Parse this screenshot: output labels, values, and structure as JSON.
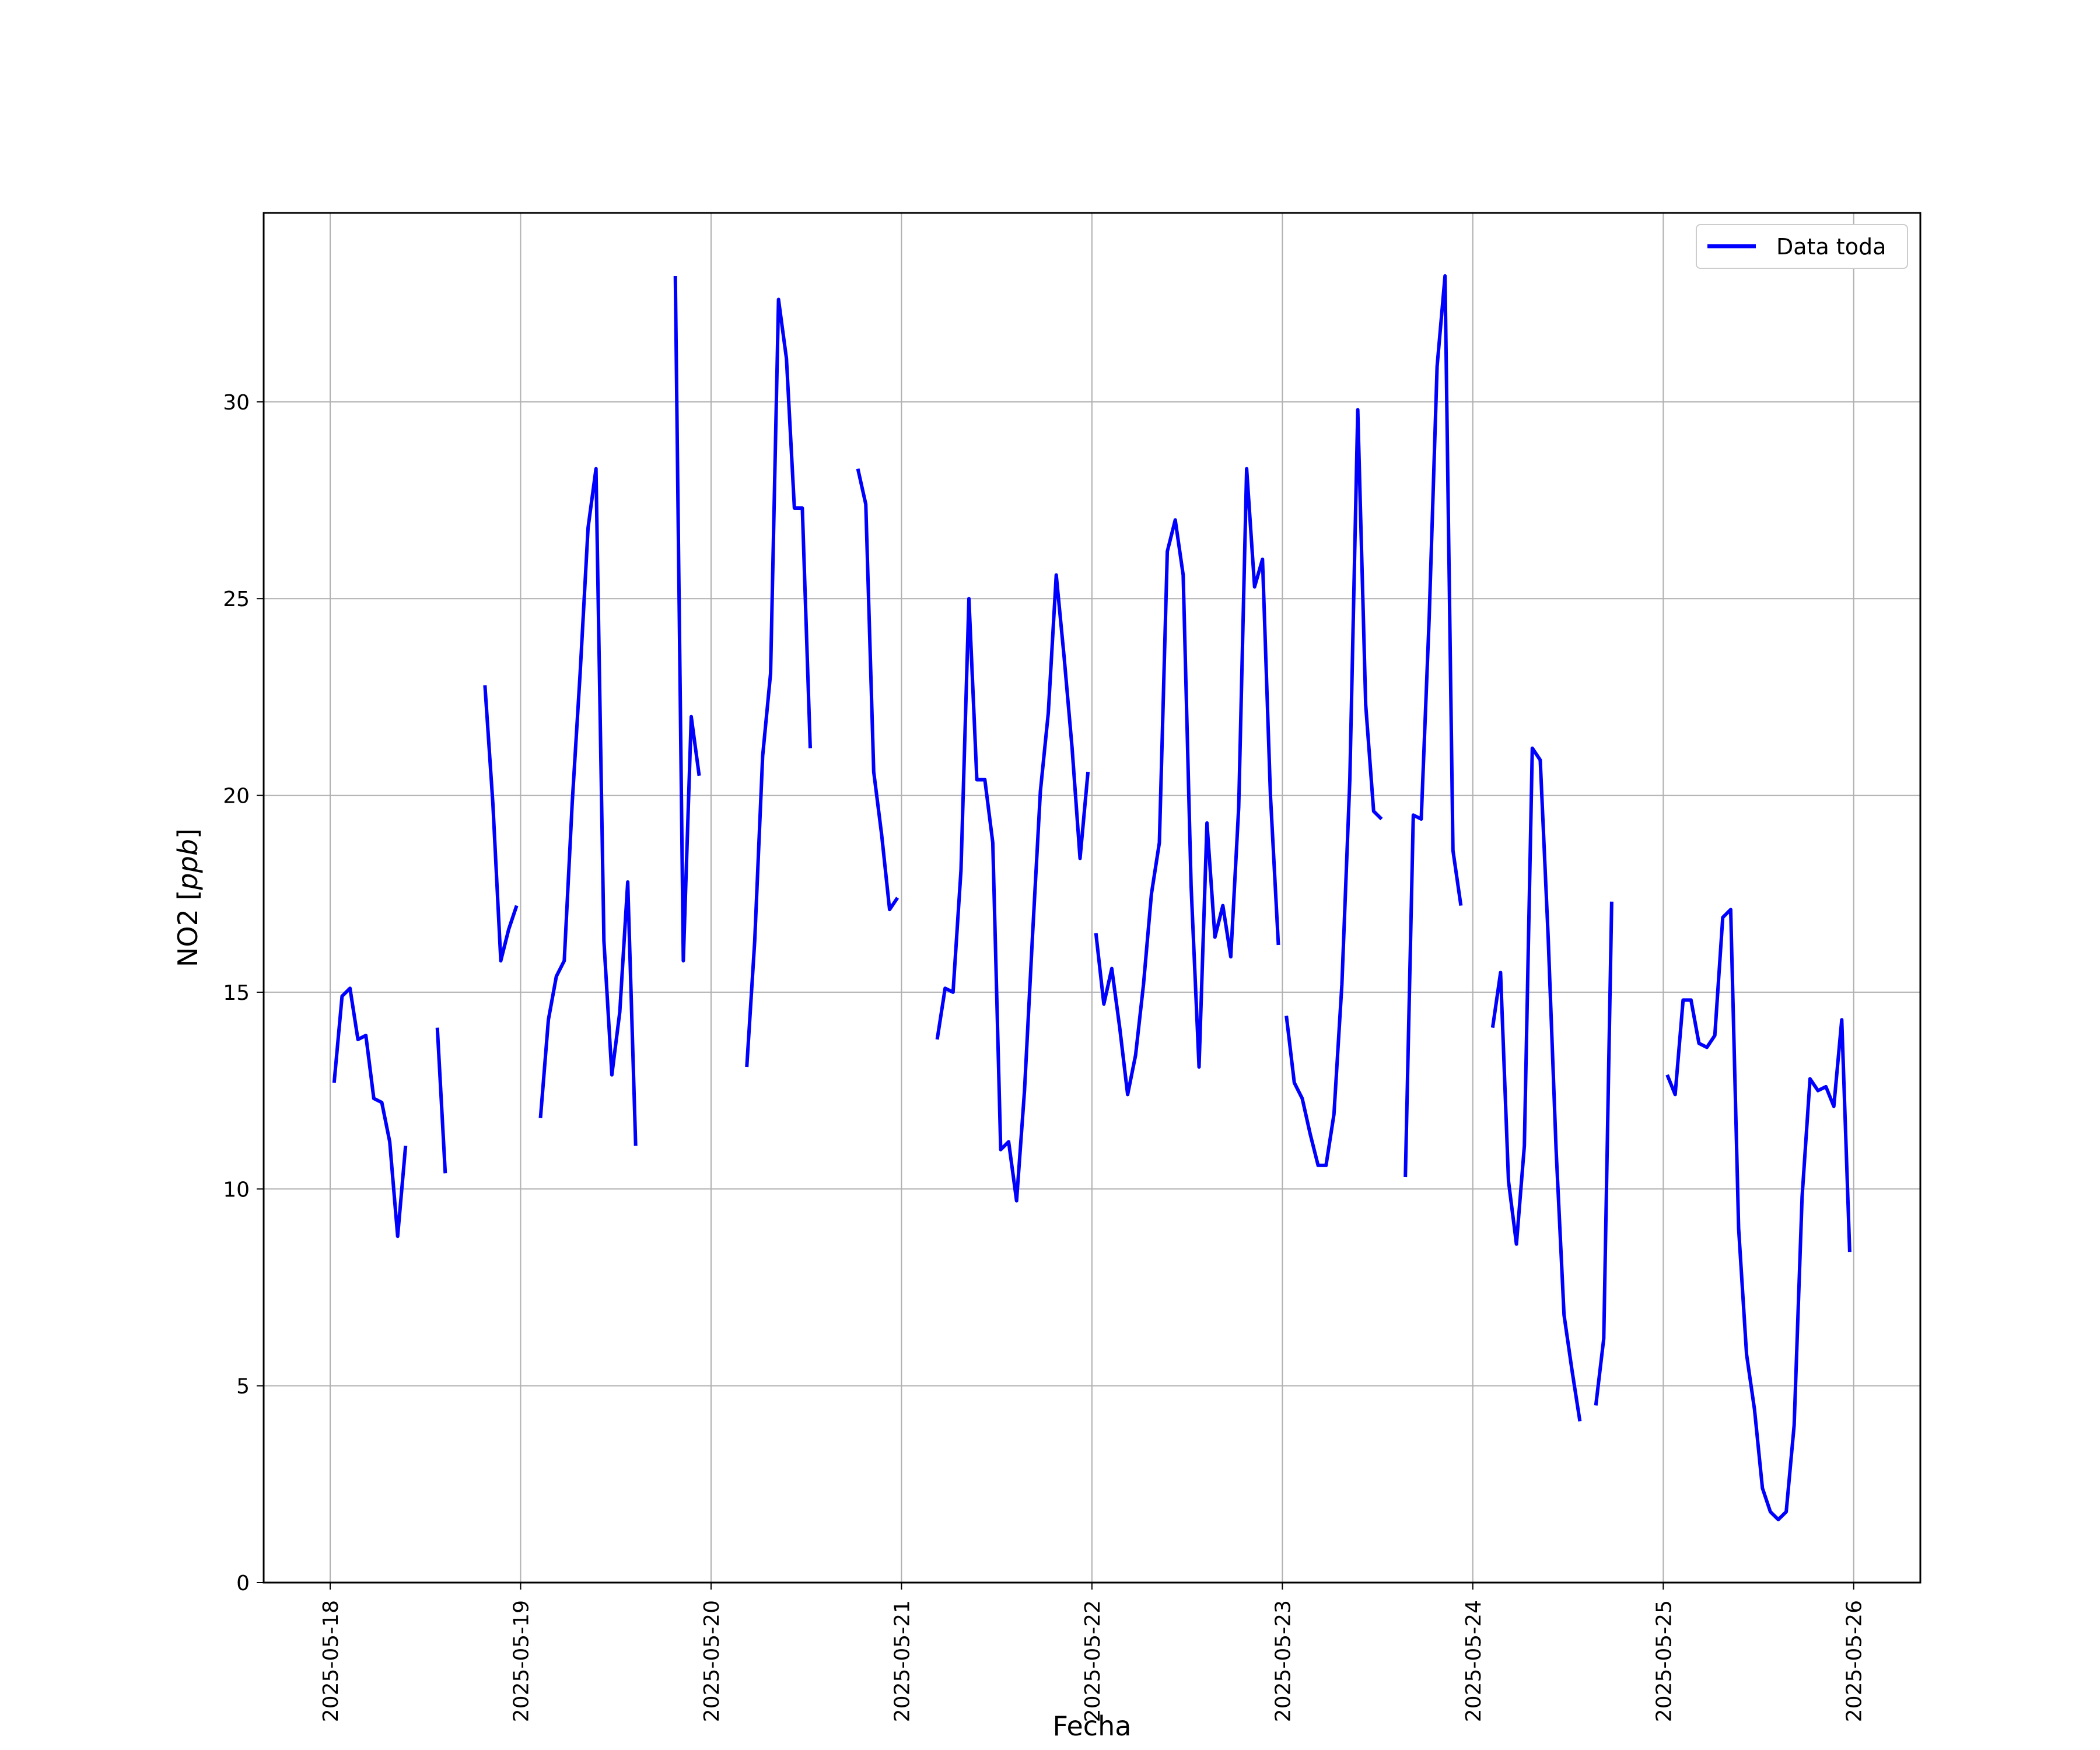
{
  "chart_data": {
    "type": "line",
    "title": "",
    "xlabel": "Fecha",
    "ylabel": "NO2 [ppb]",
    "ylabel_main": "NO2 [",
    "ylabel_unit": "ppb",
    "ylabel_close": "]",
    "xlim": [
      "2025-05-17T15:37",
      "2025-05-26T08:24"
    ],
    "ylim": [
      0,
      34.8
    ],
    "yticks": [
      0,
      5,
      10,
      15,
      20,
      25,
      30
    ],
    "xticks": [
      "2025-05-18",
      "2025-05-19",
      "2025-05-20",
      "2025-05-21",
      "2025-05-22",
      "2025-05-23",
      "2025-05-24",
      "2025-05-25",
      "2025-05-26"
    ],
    "grid": true,
    "legend_position": "top-right",
    "series_color": "#0000ff",
    "series": [
      {
        "name": "Data toda",
        "segments": [
          [
            [
              "2025-05-18T00:30",
              12.7
            ],
            [
              "2025-05-18T01:30",
              14.9
            ],
            [
              "2025-05-18T02:30",
              15.1
            ],
            [
              "2025-05-18T03:30",
              13.8
            ],
            [
              "2025-05-18T04:30",
              13.9
            ],
            [
              "2025-05-18T05:30",
              12.3
            ],
            [
              "2025-05-18T06:30",
              12.2
            ],
            [
              "2025-05-18T07:30",
              11.2
            ],
            [
              "2025-05-18T08:30",
              8.8
            ],
            [
              "2025-05-18T09:30",
              11.1
            ]
          ],
          [
            [
              "2025-05-18T13:30",
              14.1
            ],
            [
              "2025-05-18T14:30",
              10.4
            ]
          ],
          [
            [
              "2025-05-18T19:30",
              22.8
            ],
            [
              "2025-05-18T20:30",
              19.8
            ],
            [
              "2025-05-18T21:30",
              15.8
            ],
            [
              "2025-05-18T22:30",
              16.6
            ],
            [
              "2025-05-18T23:30",
              17.2
            ]
          ],
          [
            [
              "2025-05-19T02:30",
              11.8
            ],
            [
              "2025-05-19T03:30",
              14.3
            ],
            [
              "2025-05-19T04:30",
              15.4
            ],
            [
              "2025-05-19T05:30",
              15.8
            ],
            [
              "2025-05-19T06:30",
              19.8
            ],
            [
              "2025-05-19T07:30",
              23.1
            ],
            [
              "2025-05-19T08:30",
              26.8
            ],
            [
              "2025-05-19T09:30",
              28.3
            ],
            [
              "2025-05-19T10:30",
              16.3
            ],
            [
              "2025-05-19T11:30",
              12.9
            ],
            [
              "2025-05-19T12:30",
              14.5
            ],
            [
              "2025-05-19T13:30",
              17.8
            ],
            [
              "2025-05-19T14:30",
              11.1
            ]
          ],
          [
            [
              "2025-05-19T19:30",
              33.2
            ],
            [
              "2025-05-19T20:30",
              15.8
            ],
            [
              "2025-05-19T21:30",
              22.0
            ],
            [
              "2025-05-19T22:30",
              20.5
            ]
          ],
          [
            [
              "2025-05-20T04:30",
              13.1
            ],
            [
              "2025-05-20T05:30",
              16.3
            ],
            [
              "2025-05-20T06:30",
              21.0
            ],
            [
              "2025-05-20T07:30",
              23.1
            ],
            [
              "2025-05-20T08:30",
              32.6
            ],
            [
              "2025-05-20T09:30",
              31.1
            ],
            [
              "2025-05-20T10:30",
              27.3
            ],
            [
              "2025-05-20T11:30",
              27.3
            ],
            [
              "2025-05-20T12:30",
              21.2
            ]
          ],
          [
            [
              "2025-05-20T18:30",
              28.3
            ],
            [
              "2025-05-20T19:30",
              27.4
            ],
            [
              "2025-05-20T20:30",
              20.6
            ],
            [
              "2025-05-20T21:30",
              19.0
            ],
            [
              "2025-05-20T22:30",
              17.1
            ],
            [
              "2025-05-20T23:30",
              17.4
            ]
          ],
          [
            [
              "2025-05-21T04:30",
              13.8
            ],
            [
              "2025-05-21T05:30",
              15.1
            ],
            [
              "2025-05-21T06:30",
              15.0
            ],
            [
              "2025-05-21T07:30",
              18.1
            ],
            [
              "2025-05-21T08:30",
              25.0
            ],
            [
              "2025-05-21T09:30",
              20.4
            ],
            [
              "2025-05-21T10:30",
              20.4
            ],
            [
              "2025-05-21T11:30",
              18.8
            ],
            [
              "2025-05-21T12:30",
              11.0
            ],
            [
              "2025-05-21T13:30",
              11.2
            ],
            [
              "2025-05-21T14:30",
              9.7
            ],
            [
              "2025-05-21T15:30",
              12.5
            ],
            [
              "2025-05-21T16:30",
              16.4
            ],
            [
              "2025-05-21T17:30",
              20.1
            ],
            [
              "2025-05-21T18:30",
              22.1
            ],
            [
              "2025-05-21T19:30",
              25.6
            ],
            [
              "2025-05-21T20:30",
              23.5
            ],
            [
              "2025-05-21T21:30",
              21.2
            ],
            [
              "2025-05-21T22:30",
              18.4
            ],
            [
              "2025-05-21T23:30",
              20.6
            ]
          ],
          [
            [
              "2025-05-22T00:30",
              16.5
            ],
            [
              "2025-05-22T01:30",
              14.7
            ],
            [
              "2025-05-22T02:30",
              15.6
            ],
            [
              "2025-05-22T03:30",
              14.1
            ],
            [
              "2025-05-22T04:30",
              12.4
            ],
            [
              "2025-05-22T05:30",
              13.4
            ],
            [
              "2025-05-22T06:30",
              15.2
            ],
            [
              "2025-05-22T07:30",
              17.5
            ],
            [
              "2025-05-22T08:30",
              18.8
            ],
            [
              "2025-05-22T09:30",
              26.2
            ],
            [
              "2025-05-22T10:30",
              27.0
            ],
            [
              "2025-05-22T11:30",
              25.6
            ],
            [
              "2025-05-22T12:30",
              17.7
            ],
            [
              "2025-05-22T13:30",
              13.1
            ],
            [
              "2025-05-22T14:30",
              19.3
            ],
            [
              "2025-05-22T15:30",
              16.4
            ],
            [
              "2025-05-22T16:30",
              17.2
            ],
            [
              "2025-05-22T17:30",
              15.9
            ],
            [
              "2025-05-22T18:30",
              19.7
            ],
            [
              "2025-05-22T19:30",
              28.3
            ],
            [
              "2025-05-22T20:30",
              25.3
            ],
            [
              "2025-05-22T21:30",
              26.0
            ],
            [
              "2025-05-22T22:30",
              20.0
            ],
            [
              "2025-05-22T23:30",
              16.2
            ]
          ],
          [
            [
              "2025-05-23T00:30",
              14.4
            ],
            [
              "2025-05-23T01:30",
              12.7
            ],
            [
              "2025-05-23T02:30",
              12.3
            ],
            [
              "2025-05-23T03:30",
              11.4
            ],
            [
              "2025-05-23T04:30",
              10.6
            ],
            [
              "2025-05-23T05:30",
              10.6
            ],
            [
              "2025-05-23T06:30",
              11.9
            ],
            [
              "2025-05-23T07:30",
              15.2
            ],
            [
              "2025-05-23T08:30",
              20.4
            ],
            [
              "2025-05-23T09:30",
              29.8
            ],
            [
              "2025-05-23T10:30",
              22.3
            ],
            [
              "2025-05-23T11:30",
              19.6
            ],
            [
              "2025-05-23T12:30",
              19.4
            ]
          ],
          [
            [
              "2025-05-23T15:30",
              10.3
            ],
            [
              "2025-05-23T16:30",
              19.5
            ],
            [
              "2025-05-23T17:30",
              19.4
            ],
            [
              "2025-05-23T18:30",
              24.5
            ],
            [
              "2025-05-23T19:30",
              30.9
            ],
            [
              "2025-05-23T20:30",
              33.2
            ],
            [
              "2025-05-23T21:30",
              18.6
            ],
            [
              "2025-05-23T22:30",
              17.2
            ]
          ],
          [
            [
              "2025-05-24T02:30",
              14.1
            ],
            [
              "2025-05-24T03:30",
              15.5
            ],
            [
              "2025-05-24T04:30",
              10.2
            ],
            [
              "2025-05-24T05:30",
              8.6
            ],
            [
              "2025-05-24T06:30",
              11.1
            ],
            [
              "2025-05-24T07:30",
              21.2
            ],
            [
              "2025-05-24T08:30",
              20.9
            ],
            [
              "2025-05-24T09:30",
              16.4
            ],
            [
              "2025-05-24T10:30",
              11.0
            ],
            [
              "2025-05-24T11:30",
              6.8
            ],
            [
              "2025-05-24T12:30",
              5.4
            ],
            [
              "2025-05-24T13:30",
              4.1
            ]
          ],
          [
            [
              "2025-05-24T15:30",
              4.5
            ],
            [
              "2025-05-24T16:30",
              6.2
            ],
            [
              "2025-05-24T17:30",
              17.3
            ]
          ],
          [
            [
              "2025-05-25T00:30",
              12.9
            ],
            [
              "2025-05-25T01:30",
              12.4
            ],
            [
              "2025-05-25T02:30",
              14.8
            ],
            [
              "2025-05-25T03:30",
              14.8
            ],
            [
              "2025-05-25T04:30",
              13.7
            ],
            [
              "2025-05-25T05:30",
              13.6
            ],
            [
              "2025-05-25T06:30",
              13.9
            ],
            [
              "2025-05-25T07:30",
              16.9
            ],
            [
              "2025-05-25T08:30",
              17.1
            ],
            [
              "2025-05-25T09:30",
              9.0
            ],
            [
              "2025-05-25T10:30",
              5.8
            ],
            [
              "2025-05-25T11:30",
              4.4
            ],
            [
              "2025-05-25T12:30",
              2.4
            ],
            [
              "2025-05-25T13:30",
              1.8
            ],
            [
              "2025-05-25T14:30",
              1.6
            ],
            [
              "2025-05-25T15:30",
              1.8
            ],
            [
              "2025-05-25T16:30",
              4.0
            ],
            [
              "2025-05-25T17:30",
              9.8
            ],
            [
              "2025-05-25T18:30",
              12.8
            ],
            [
              "2025-05-25T19:30",
              12.5
            ],
            [
              "2025-05-25T20:30",
              12.6
            ],
            [
              "2025-05-25T21:30",
              12.1
            ],
            [
              "2025-05-25T22:30",
              14.3
            ],
            [
              "2025-05-25T23:30",
              8.4
            ]
          ]
        ]
      }
    ]
  }
}
